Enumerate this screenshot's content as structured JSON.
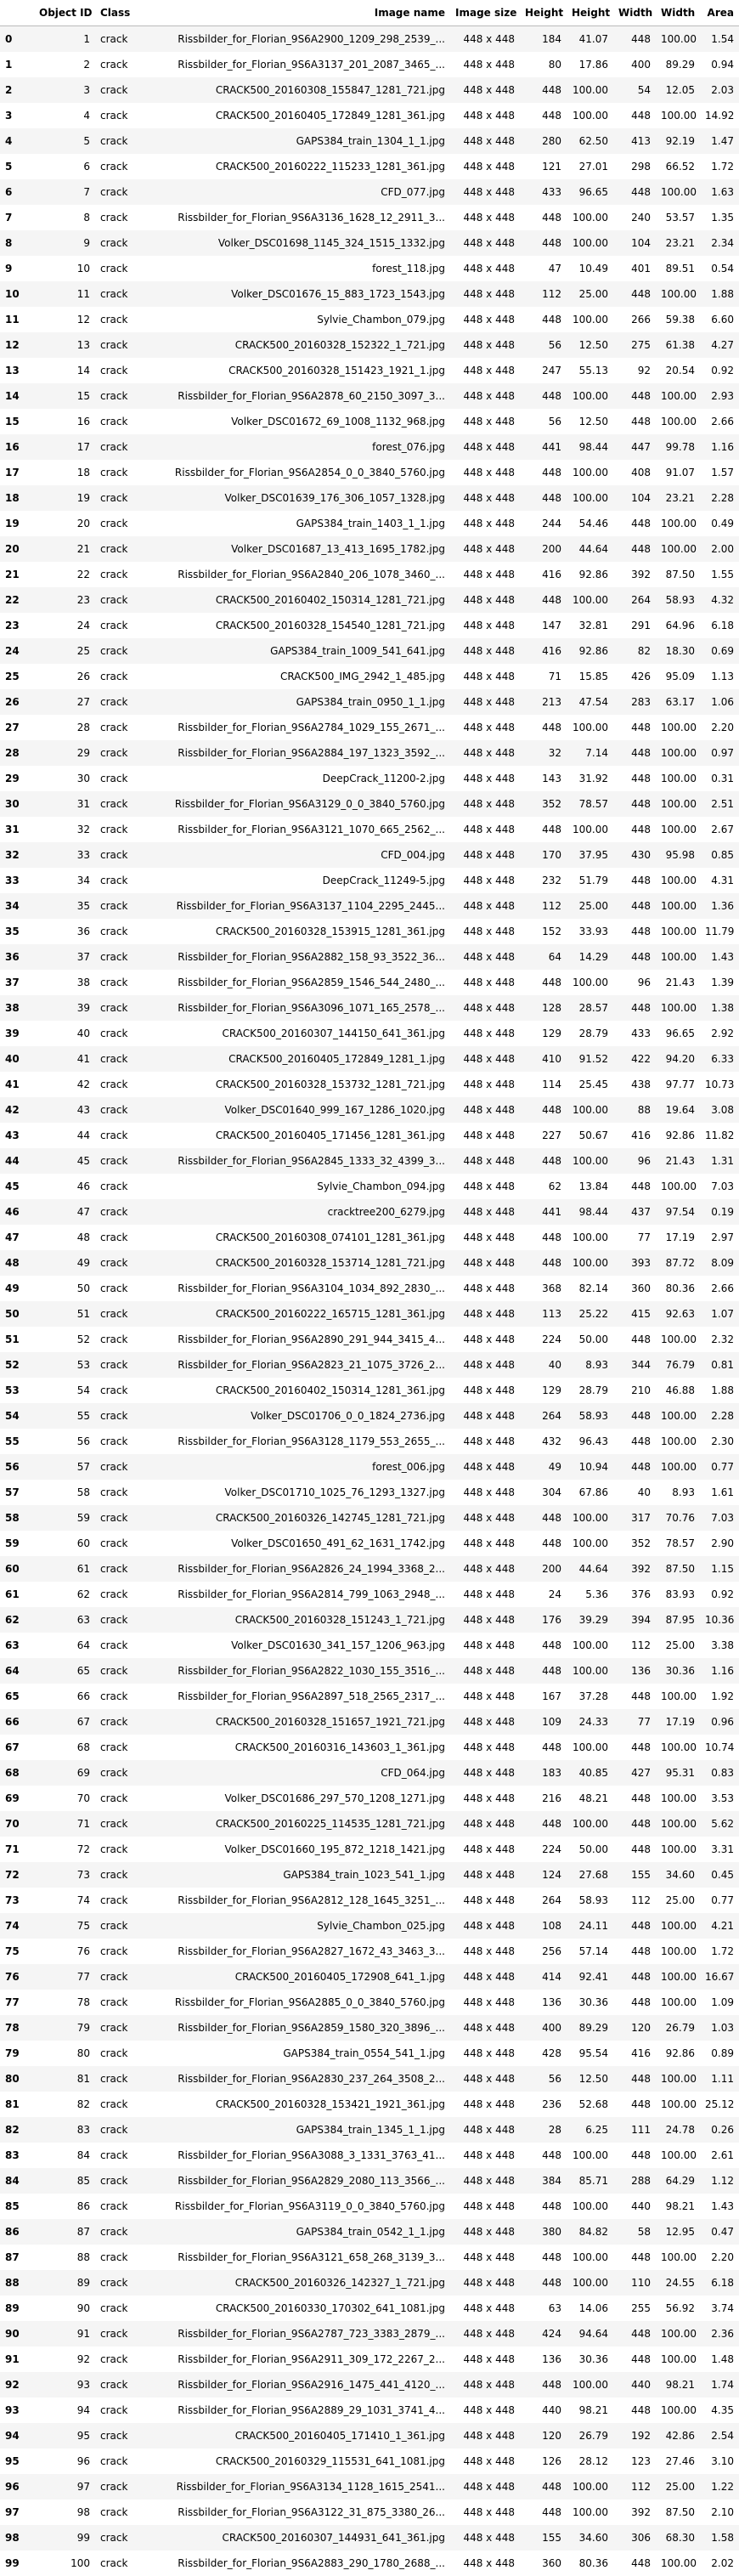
{
  "columns": [
    "",
    "Object ID",
    "Class",
    "Image name",
    "Image size",
    "Height",
    "Height",
    "Width",
    "Width",
    "Area"
  ],
  "rows": [
    [
      "0",
      "1",
      "crack",
      "Rissbilder_for_Florian_9S6A2900_1209_298_2539_...",
      "448 x 448",
      "184",
      "41.07",
      "448",
      "100.00",
      "1.54"
    ],
    [
      "1",
      "2",
      "crack",
      "Rissbilder_for_Florian_9S6A3137_201_2087_3465_...",
      "448 x 448",
      "80",
      "17.86",
      "400",
      "89.29",
      "0.94"
    ],
    [
      "2",
      "3",
      "crack",
      "CRACK500_20160308_155847_1281_721.jpg",
      "448 x 448",
      "448",
      "100.00",
      "54",
      "12.05",
      "2.03"
    ],
    [
      "3",
      "4",
      "crack",
      "CRACK500_20160405_172849_1281_361.jpg",
      "448 x 448",
      "448",
      "100.00",
      "448",
      "100.00",
      "14.92"
    ],
    [
      "4",
      "5",
      "crack",
      "GAPS384_train_1304_1_1.jpg",
      "448 x 448",
      "280",
      "62.50",
      "413",
      "92.19",
      "1.47"
    ],
    [
      "5",
      "6",
      "crack",
      "CRACK500_20160222_115233_1281_361.jpg",
      "448 x 448",
      "121",
      "27.01",
      "298",
      "66.52",
      "1.72"
    ],
    [
      "6",
      "7",
      "crack",
      "CFD_077.jpg",
      "448 x 448",
      "433",
      "96.65",
      "448",
      "100.00",
      "1.63"
    ],
    [
      "7",
      "8",
      "crack",
      "Rissbilder_for_Florian_9S6A3136_1628_12_2911_3...",
      "448 x 448",
      "448",
      "100.00",
      "240",
      "53.57",
      "1.35"
    ],
    [
      "8",
      "9",
      "crack",
      "Volker_DSC01698_1145_324_1515_1332.jpg",
      "448 x 448",
      "448",
      "100.00",
      "104",
      "23.21",
      "2.34"
    ],
    [
      "9",
      "10",
      "crack",
      "forest_118.jpg",
      "448 x 448",
      "47",
      "10.49",
      "401",
      "89.51",
      "0.54"
    ],
    [
      "10",
      "11",
      "crack",
      "Volker_DSC01676_15_883_1723_1543.jpg",
      "448 x 448",
      "112",
      "25.00",
      "448",
      "100.00",
      "1.88"
    ],
    [
      "11",
      "12",
      "crack",
      "Sylvie_Chambon_079.jpg",
      "448 x 448",
      "448",
      "100.00",
      "266",
      "59.38",
      "6.60"
    ],
    [
      "12",
      "13",
      "crack",
      "CRACK500_20160328_152322_1_721.jpg",
      "448 x 448",
      "56",
      "12.50",
      "275",
      "61.38",
      "4.27"
    ],
    [
      "13",
      "14",
      "crack",
      "CRACK500_20160328_151423_1921_1.jpg",
      "448 x 448",
      "247",
      "55.13",
      "92",
      "20.54",
      "0.92"
    ],
    [
      "14",
      "15",
      "crack",
      "Rissbilder_for_Florian_9S6A2878_60_2150_3097_3...",
      "448 x 448",
      "448",
      "100.00",
      "448",
      "100.00",
      "2.93"
    ],
    [
      "15",
      "16",
      "crack",
      "Volker_DSC01672_69_1008_1132_968.jpg",
      "448 x 448",
      "56",
      "12.50",
      "448",
      "100.00",
      "2.66"
    ],
    [
      "16",
      "17",
      "crack",
      "forest_076.jpg",
      "448 x 448",
      "441",
      "98.44",
      "447",
      "99.78",
      "1.16"
    ],
    [
      "17",
      "18",
      "crack",
      "Rissbilder_for_Florian_9S6A2854_0_0_3840_5760.jpg",
      "448 x 448",
      "448",
      "100.00",
      "408",
      "91.07",
      "1.57"
    ],
    [
      "18",
      "19",
      "crack",
      "Volker_DSC01639_176_306_1057_1328.jpg",
      "448 x 448",
      "448",
      "100.00",
      "104",
      "23.21",
      "2.28"
    ],
    [
      "19",
      "20",
      "crack",
      "GAPS384_train_1403_1_1.jpg",
      "448 x 448",
      "244",
      "54.46",
      "448",
      "100.00",
      "0.49"
    ],
    [
      "20",
      "21",
      "crack",
      "Volker_DSC01687_13_413_1695_1782.jpg",
      "448 x 448",
      "200",
      "44.64",
      "448",
      "100.00",
      "2.00"
    ],
    [
      "21",
      "22",
      "crack",
      "Rissbilder_for_Florian_9S6A2840_206_1078_3460_...",
      "448 x 448",
      "416",
      "92.86",
      "392",
      "87.50",
      "1.55"
    ],
    [
      "22",
      "23",
      "crack",
      "CRACK500_20160402_150314_1281_721.jpg",
      "448 x 448",
      "448",
      "100.00",
      "264",
      "58.93",
      "4.32"
    ],
    [
      "23",
      "24",
      "crack",
      "CRACK500_20160328_154540_1281_721.jpg",
      "448 x 448",
      "147",
      "32.81",
      "291",
      "64.96",
      "6.18"
    ],
    [
      "24",
      "25",
      "crack",
      "GAPS384_train_1009_541_641.jpg",
      "448 x 448",
      "416",
      "92.86",
      "82",
      "18.30",
      "0.69"
    ],
    [
      "25",
      "26",
      "crack",
      "CRACK500_IMG_2942_1_485.jpg",
      "448 x 448",
      "71",
      "15.85",
      "426",
      "95.09",
      "1.13"
    ],
    [
      "26",
      "27",
      "crack",
      "GAPS384_train_0950_1_1.jpg",
      "448 x 448",
      "213",
      "47.54",
      "283",
      "63.17",
      "1.06"
    ],
    [
      "27",
      "28",
      "crack",
      "Rissbilder_for_Florian_9S6A2784_1029_155_2671_...",
      "448 x 448",
      "448",
      "100.00",
      "448",
      "100.00",
      "2.20"
    ],
    [
      "28",
      "29",
      "crack",
      "Rissbilder_for_Florian_9S6A2884_197_1323_3592_...",
      "448 x 448",
      "32",
      "7.14",
      "448",
      "100.00",
      "0.97"
    ],
    [
      "29",
      "30",
      "crack",
      "DeepCrack_11200-2.jpg",
      "448 x 448",
      "143",
      "31.92",
      "448",
      "100.00",
      "0.31"
    ],
    [
      "30",
      "31",
      "crack",
      "Rissbilder_for_Florian_9S6A3129_0_0_3840_5760.jpg",
      "448 x 448",
      "352",
      "78.57",
      "448",
      "100.00",
      "2.51"
    ],
    [
      "31",
      "32",
      "crack",
      "Rissbilder_for_Florian_9S6A3121_1070_665_2562_...",
      "448 x 448",
      "448",
      "100.00",
      "448",
      "100.00",
      "2.67"
    ],
    [
      "32",
      "33",
      "crack",
      "CFD_004.jpg",
      "448 x 448",
      "170",
      "37.95",
      "430",
      "95.98",
      "0.85"
    ],
    [
      "33",
      "34",
      "crack",
      "DeepCrack_11249-5.jpg",
      "448 x 448",
      "232",
      "51.79",
      "448",
      "100.00",
      "4.31"
    ],
    [
      "34",
      "35",
      "crack",
      "Rissbilder_for_Florian_9S6A3137_1104_2295_2445...",
      "448 x 448",
      "112",
      "25.00",
      "448",
      "100.00",
      "1.36"
    ],
    [
      "35",
      "36",
      "crack",
      "CRACK500_20160328_153915_1281_361.jpg",
      "448 x 448",
      "152",
      "33.93",
      "448",
      "100.00",
      "11.79"
    ],
    [
      "36",
      "37",
      "crack",
      "Rissbilder_for_Florian_9S6A2882_158_93_3522_36...",
      "448 x 448",
      "64",
      "14.29",
      "448",
      "100.00",
      "1.43"
    ],
    [
      "37",
      "38",
      "crack",
      "Rissbilder_for_Florian_9S6A2859_1546_544_2480_...",
      "448 x 448",
      "448",
      "100.00",
      "96",
      "21.43",
      "1.39"
    ],
    [
      "38",
      "39",
      "crack",
      "Rissbilder_for_Florian_9S6A3096_1071_165_2578_...",
      "448 x 448",
      "128",
      "28.57",
      "448",
      "100.00",
      "1.38"
    ],
    [
      "39",
      "40",
      "crack",
      "CRACK500_20160307_144150_641_361.jpg",
      "448 x 448",
      "129",
      "28.79",
      "433",
      "96.65",
      "2.92"
    ],
    [
      "40",
      "41",
      "crack",
      "CRACK500_20160405_172849_1281_1.jpg",
      "448 x 448",
      "410",
      "91.52",
      "422",
      "94.20",
      "6.33"
    ],
    [
      "41",
      "42",
      "crack",
      "CRACK500_20160328_153732_1281_721.jpg",
      "448 x 448",
      "114",
      "25.45",
      "438",
      "97.77",
      "10.73"
    ],
    [
      "42",
      "43",
      "crack",
      "Volker_DSC01640_999_167_1286_1020.jpg",
      "448 x 448",
      "448",
      "100.00",
      "88",
      "19.64",
      "3.08"
    ],
    [
      "43",
      "44",
      "crack",
      "CRACK500_20160405_171456_1281_361.jpg",
      "448 x 448",
      "227",
      "50.67",
      "416",
      "92.86",
      "11.82"
    ],
    [
      "44",
      "45",
      "crack",
      "Rissbilder_for_Florian_9S6A2845_1333_32_4399_3...",
      "448 x 448",
      "448",
      "100.00",
      "96",
      "21.43",
      "1.31"
    ],
    [
      "45",
      "46",
      "crack",
      "Sylvie_Chambon_094.jpg",
      "448 x 448",
      "62",
      "13.84",
      "448",
      "100.00",
      "7.03"
    ],
    [
      "46",
      "47",
      "crack",
      "cracktree200_6279.jpg",
      "448 x 448",
      "441",
      "98.44",
      "437",
      "97.54",
      "0.19"
    ],
    [
      "47",
      "48",
      "crack",
      "CRACK500_20160308_074101_1281_361.jpg",
      "448 x 448",
      "448",
      "100.00",
      "77",
      "17.19",
      "2.97"
    ],
    [
      "48",
      "49",
      "crack",
      "CRACK500_20160328_153714_1281_721.jpg",
      "448 x 448",
      "448",
      "100.00",
      "393",
      "87.72",
      "8.09"
    ],
    [
      "49",
      "50",
      "crack",
      "Rissbilder_for_Florian_9S6A3104_1034_892_2830_...",
      "448 x 448",
      "368",
      "82.14",
      "360",
      "80.36",
      "2.66"
    ],
    [
      "50",
      "51",
      "crack",
      "CRACK500_20160222_165715_1281_361.jpg",
      "448 x 448",
      "113",
      "25.22",
      "415",
      "92.63",
      "1.07"
    ],
    [
      "51",
      "52",
      "crack",
      "Rissbilder_for_Florian_9S6A2890_291_944_3415_4...",
      "448 x 448",
      "224",
      "50.00",
      "448",
      "100.00",
      "2.32"
    ],
    [
      "52",
      "53",
      "crack",
      "Rissbilder_for_Florian_9S6A2823_21_1075_3726_2...",
      "448 x 448",
      "40",
      "8.93",
      "344",
      "76.79",
      "0.81"
    ],
    [
      "53",
      "54",
      "crack",
      "CRACK500_20160402_150314_1281_361.jpg",
      "448 x 448",
      "129",
      "28.79",
      "210",
      "46.88",
      "1.88"
    ],
    [
      "54",
      "55",
      "crack",
      "Volker_DSC01706_0_0_1824_2736.jpg",
      "448 x 448",
      "264",
      "58.93",
      "448",
      "100.00",
      "2.28"
    ],
    [
      "55",
      "56",
      "crack",
      "Rissbilder_for_Florian_9S6A3128_1179_553_2655_...",
      "448 x 448",
      "432",
      "96.43",
      "448",
      "100.00",
      "2.30"
    ],
    [
      "56",
      "57",
      "crack",
      "forest_006.jpg",
      "448 x 448",
      "49",
      "10.94",
      "448",
      "100.00",
      "0.77"
    ],
    [
      "57",
      "58",
      "crack",
      "Volker_DSC01710_1025_76_1293_1327.jpg",
      "448 x 448",
      "304",
      "67.86",
      "40",
      "8.93",
      "1.61"
    ],
    [
      "58",
      "59",
      "crack",
      "CRACK500_20160326_142745_1281_721.jpg",
      "448 x 448",
      "448",
      "100.00",
      "317",
      "70.76",
      "7.03"
    ],
    [
      "59",
      "60",
      "crack",
      "Volker_DSC01650_491_62_1631_1742.jpg",
      "448 x 448",
      "448",
      "100.00",
      "352",
      "78.57",
      "2.90"
    ],
    [
      "60",
      "61",
      "crack",
      "Rissbilder_for_Florian_9S6A2826_24_1994_3368_2...",
      "448 x 448",
      "200",
      "44.64",
      "392",
      "87.50",
      "1.15"
    ],
    [
      "61",
      "62",
      "crack",
      "Rissbilder_for_Florian_9S6A2814_799_1063_2948_...",
      "448 x 448",
      "24",
      "5.36",
      "376",
      "83.93",
      "0.92"
    ],
    [
      "62",
      "63",
      "crack",
      "CRACK500_20160328_151243_1_721.jpg",
      "448 x 448",
      "176",
      "39.29",
      "394",
      "87.95",
      "10.36"
    ],
    [
      "63",
      "64",
      "crack",
      "Volker_DSC01630_341_157_1206_963.jpg",
      "448 x 448",
      "448",
      "100.00",
      "112",
      "25.00",
      "3.38"
    ],
    [
      "64",
      "65",
      "crack",
      "Rissbilder_for_Florian_9S6A2822_1030_155_3516_...",
      "448 x 448",
      "448",
      "100.00",
      "136",
      "30.36",
      "1.16"
    ],
    [
      "65",
      "66",
      "crack",
      "Rissbilder_for_Florian_9S6A2897_518_2565_2317_...",
      "448 x 448",
      "167",
      "37.28",
      "448",
      "100.00",
      "1.92"
    ],
    [
      "66",
      "67",
      "crack",
      "CRACK500_20160328_151657_1921_721.jpg",
      "448 x 448",
      "109",
      "24.33",
      "77",
      "17.19",
      "0.96"
    ],
    [
      "67",
      "68",
      "crack",
      "CRACK500_20160316_143603_1_361.jpg",
      "448 x 448",
      "448",
      "100.00",
      "448",
      "100.00",
      "10.74"
    ],
    [
      "68",
      "69",
      "crack",
      "CFD_064.jpg",
      "448 x 448",
      "183",
      "40.85",
      "427",
      "95.31",
      "0.83"
    ],
    [
      "69",
      "70",
      "crack",
      "Volker_DSC01686_297_570_1208_1271.jpg",
      "448 x 448",
      "216",
      "48.21",
      "448",
      "100.00",
      "3.53"
    ],
    [
      "70",
      "71",
      "crack",
      "CRACK500_20160225_114535_1281_721.jpg",
      "448 x 448",
      "448",
      "100.00",
      "448",
      "100.00",
      "5.62"
    ],
    [
      "71",
      "72",
      "crack",
      "Volker_DSC01660_195_872_1218_1421.jpg",
      "448 x 448",
      "224",
      "50.00",
      "448",
      "100.00",
      "3.31"
    ],
    [
      "72",
      "73",
      "crack",
      "GAPS384_train_1023_541_1.jpg",
      "448 x 448",
      "124",
      "27.68",
      "155",
      "34.60",
      "0.45"
    ],
    [
      "73",
      "74",
      "crack",
      "Rissbilder_for_Florian_9S6A2812_128_1645_3251_...",
      "448 x 448",
      "264",
      "58.93",
      "112",
      "25.00",
      "0.77"
    ],
    [
      "74",
      "75",
      "crack",
      "Sylvie_Chambon_025.jpg",
      "448 x 448",
      "108",
      "24.11",
      "448",
      "100.00",
      "4.21"
    ],
    [
      "75",
      "76",
      "crack",
      "Rissbilder_for_Florian_9S6A2827_1672_43_3463_3...",
      "448 x 448",
      "256",
      "57.14",
      "448",
      "100.00",
      "1.72"
    ],
    [
      "76",
      "77",
      "crack",
      "CRACK500_20160405_172908_641_1.jpg",
      "448 x 448",
      "414",
      "92.41",
      "448",
      "100.00",
      "16.67"
    ],
    [
      "77",
      "78",
      "crack",
      "Rissbilder_for_Florian_9S6A2885_0_0_3840_5760.jpg",
      "448 x 448",
      "136",
      "30.36",
      "448",
      "100.00",
      "1.09"
    ],
    [
      "78",
      "79",
      "crack",
      "Rissbilder_for_Florian_9S6A2859_1580_320_3896_...",
      "448 x 448",
      "400",
      "89.29",
      "120",
      "26.79",
      "1.03"
    ],
    [
      "79",
      "80",
      "crack",
      "GAPS384_train_0554_541_1.jpg",
      "448 x 448",
      "428",
      "95.54",
      "416",
      "92.86",
      "0.89"
    ],
    [
      "80",
      "81",
      "crack",
      "Rissbilder_for_Florian_9S6A2830_237_264_3508_2...",
      "448 x 448",
      "56",
      "12.50",
      "448",
      "100.00",
      "1.11"
    ],
    [
      "81",
      "82",
      "crack",
      "CRACK500_20160328_153421_1921_361.jpg",
      "448 x 448",
      "236",
      "52.68",
      "448",
      "100.00",
      "25.12"
    ],
    [
      "82",
      "83",
      "crack",
      "GAPS384_train_1345_1_1.jpg",
      "448 x 448",
      "28",
      "6.25",
      "111",
      "24.78",
      "0.26"
    ],
    [
      "83",
      "84",
      "crack",
      "Rissbilder_for_Florian_9S6A3088_3_1331_3763_41...",
      "448 x 448",
      "448",
      "100.00",
      "448",
      "100.00",
      "2.61"
    ],
    [
      "84",
      "85",
      "crack",
      "Rissbilder_for_Florian_9S6A2829_2080_113_3566_...",
      "448 x 448",
      "384",
      "85.71",
      "288",
      "64.29",
      "1.12"
    ],
    [
      "85",
      "86",
      "crack",
      "Rissbilder_for_Florian_9S6A3119_0_0_3840_5760.jpg",
      "448 x 448",
      "448",
      "100.00",
      "440",
      "98.21",
      "1.43"
    ],
    [
      "86",
      "87",
      "crack",
      "GAPS384_train_0542_1_1.jpg",
      "448 x 448",
      "380",
      "84.82",
      "58",
      "12.95",
      "0.47"
    ],
    [
      "87",
      "88",
      "crack",
      "Rissbilder_for_Florian_9S6A3121_658_268_3139_3...",
      "448 x 448",
      "448",
      "100.00",
      "448",
      "100.00",
      "2.20"
    ],
    [
      "88",
      "89",
      "crack",
      "CRACK500_20160326_142327_1_721.jpg",
      "448 x 448",
      "448",
      "100.00",
      "110",
      "24.55",
      "6.18"
    ],
    [
      "89",
      "90",
      "crack",
      "CRACK500_20160330_170302_641_1081.jpg",
      "448 x 448",
      "63",
      "14.06",
      "255",
      "56.92",
      "3.74"
    ],
    [
      "90",
      "91",
      "crack",
      "Rissbilder_for_Florian_9S6A2787_723_3383_2879_...",
      "448 x 448",
      "424",
      "94.64",
      "448",
      "100.00",
      "2.36"
    ],
    [
      "91",
      "92",
      "crack",
      "Rissbilder_for_Florian_9S6A2911_309_172_2267_2...",
      "448 x 448",
      "136",
      "30.36",
      "448",
      "100.00",
      "1.48"
    ],
    [
      "92",
      "93",
      "crack",
      "Rissbilder_for_Florian_9S6A2916_1475_441_4120_...",
      "448 x 448",
      "448",
      "100.00",
      "440",
      "98.21",
      "1.74"
    ],
    [
      "93",
      "94",
      "crack",
      "Rissbilder_for_Florian_9S6A2889_29_1031_3741_4...",
      "448 x 448",
      "440",
      "98.21",
      "448",
      "100.00",
      "4.35"
    ],
    [
      "94",
      "95",
      "crack",
      "CRACK500_20160405_171410_1_361.jpg",
      "448 x 448",
      "120",
      "26.79",
      "192",
      "42.86",
      "2.54"
    ],
    [
      "95",
      "96",
      "crack",
      "CRACK500_20160329_115531_641_1081.jpg",
      "448 x 448",
      "126",
      "28.12",
      "123",
      "27.46",
      "3.10"
    ],
    [
      "96",
      "97",
      "crack",
      "Rissbilder_for_Florian_9S6A3134_1128_1615_2541...",
      "448 x 448",
      "448",
      "100.00",
      "112",
      "25.00",
      "1.22"
    ],
    [
      "97",
      "98",
      "crack",
      "Rissbilder_for_Florian_9S6A3122_31_875_3380_26...",
      "448 x 448",
      "448",
      "100.00",
      "392",
      "87.50",
      "2.10"
    ],
    [
      "98",
      "99",
      "crack",
      "CRACK500_20160307_144931_641_361.jpg",
      "448 x 448",
      "155",
      "34.60",
      "306",
      "68.30",
      "1.58"
    ],
    [
      "99",
      "100",
      "crack",
      "Rissbilder_for_Florian_9S6A2883_290_1780_2688_...",
      "448 x 448",
      "360",
      "80.36",
      "448",
      "100.00",
      "2.02"
    ]
  ]
}
